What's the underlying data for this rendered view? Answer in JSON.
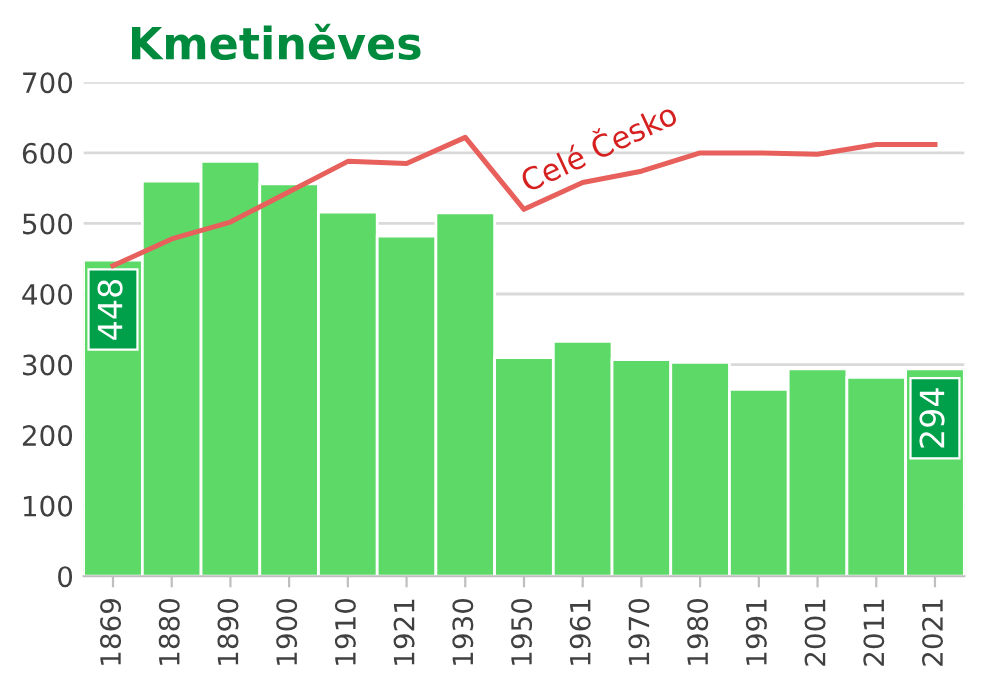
{
  "chart_data": {
    "type": "bar",
    "title": "Kmetiněves",
    "categories": [
      "1869",
      "1880",
      "1890",
      "1900",
      "1910",
      "1921",
      "1930",
      "1950",
      "1961",
      "1970",
      "1980",
      "1991",
      "2001",
      "2011",
      "2021"
    ],
    "series": [
      {
        "color": "#5cd966",
        "values": [
          448,
          560,
          588,
          556,
          516,
          482,
          515,
          310,
          333,
          307,
          303,
          265,
          294,
          282,
          294
        ],
        "value_labels": [
          "448",
          null,
          null,
          null,
          null,
          null,
          null,
          null,
          null,
          null,
          null,
          null,
          null,
          null,
          "294"
        ]
      },
      {
        "type": "line",
        "name": "Celé Česko",
        "color": "#e8605c",
        "values": [
          440,
          478,
          502,
          545,
          588,
          585,
          622,
          520,
          558,
          574,
          600,
          600,
          598,
          612,
          612
        ]
      }
    ],
    "ylim": [
      0,
      700
    ],
    "yticks": [
      0,
      100,
      200,
      300,
      400,
      500,
      600,
      700
    ],
    "grid": "y",
    "legend": false
  }
}
